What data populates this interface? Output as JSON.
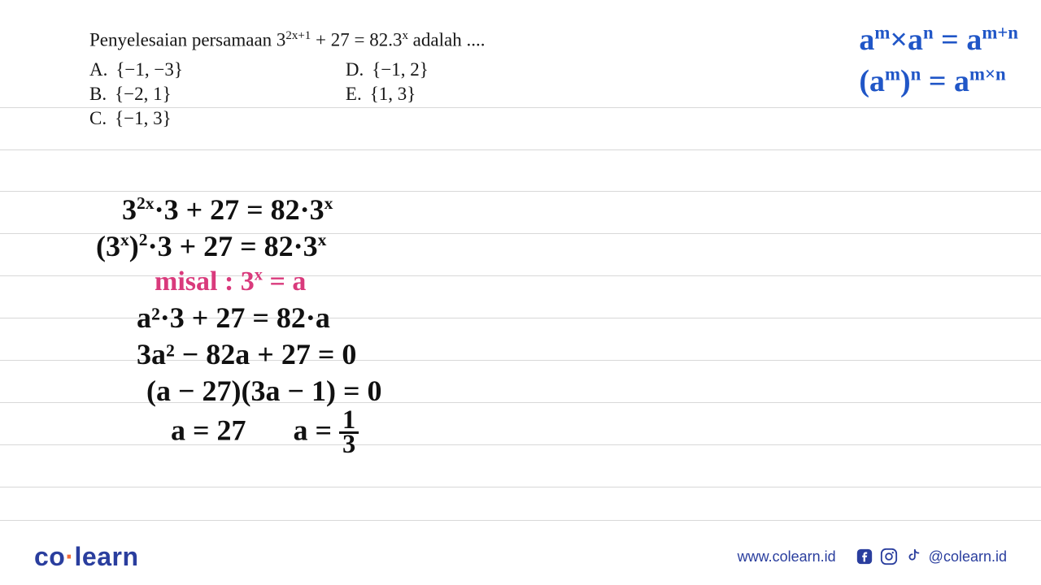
{
  "paper": {
    "background_color": "#ffffff",
    "line_color": "#d8d8d8",
    "line_positions": [
      132,
      184,
      235,
      287,
      339,
      391,
      443,
      495,
      547,
      599,
      640
    ]
  },
  "question": {
    "prefix": "Penyelesaian persamaan ",
    "expr_base": "3",
    "expr_exp": "2x+1",
    "expr_mid": " + 27 = 82.3",
    "expr_exp2": "x",
    "suffix": " adalah ....",
    "font_color": "#161616",
    "font_size": 23
  },
  "options": {
    "A": {
      "letter": "A.",
      "value": "{−1, −3}"
    },
    "B": {
      "letter": "B.",
      "value": "{−2, 1}"
    },
    "C": {
      "letter": "C.",
      "value": "{−1, 3}"
    },
    "D": {
      "letter": "D.",
      "value": "{−1, 2}"
    },
    "E": {
      "letter": "E.",
      "value": "{1, 3}"
    }
  },
  "formulas": {
    "color": "#2056c7",
    "line1_a": "a",
    "line1_m": "m",
    "line1_x": "×a",
    "line1_n": "n",
    "line1_eq": "= a",
    "line1_mn": "m+n",
    "line2_open": "(a",
    "line2_m": "m",
    "line2_close": ")",
    "line2_n": "n",
    "line2_eq": "= a",
    "line2_mxn": "m×n"
  },
  "work": {
    "black_color": "#111111",
    "pink_color": "#d93a7c",
    "l1_a": "3",
    "l1_exp1": "2x",
    "l1_b": "·3 + 27 = 82·3",
    "l1_exp2": "x",
    "l2_a": "(3",
    "l2_exp1": "x",
    "l2_b": ")",
    "l2_exp2": "2",
    "l2_c": "·3 + 27 = 82·3",
    "l2_exp3": "x",
    "l3_label": "misal :",
    "l3_a": " 3",
    "l3_exp": "x",
    "l3_b": " = a",
    "l4": "a²·3 + 27 = 82·a",
    "l5": "3a² − 82a + 27 = 0",
    "l6": "(a − 27)(3a − 1) = 0",
    "l7a": "a = 27",
    "l7b_pre": "a = ",
    "l7b_num": "1",
    "l7b_den": "3"
  },
  "footer": {
    "logo_co": "co",
    "logo_dot": "·",
    "logo_learn": "learn",
    "url": "www.colearn.id",
    "handle": "@colearn.id",
    "brand_color": "#2a3e9e",
    "accent_color": "#f26b3a"
  }
}
